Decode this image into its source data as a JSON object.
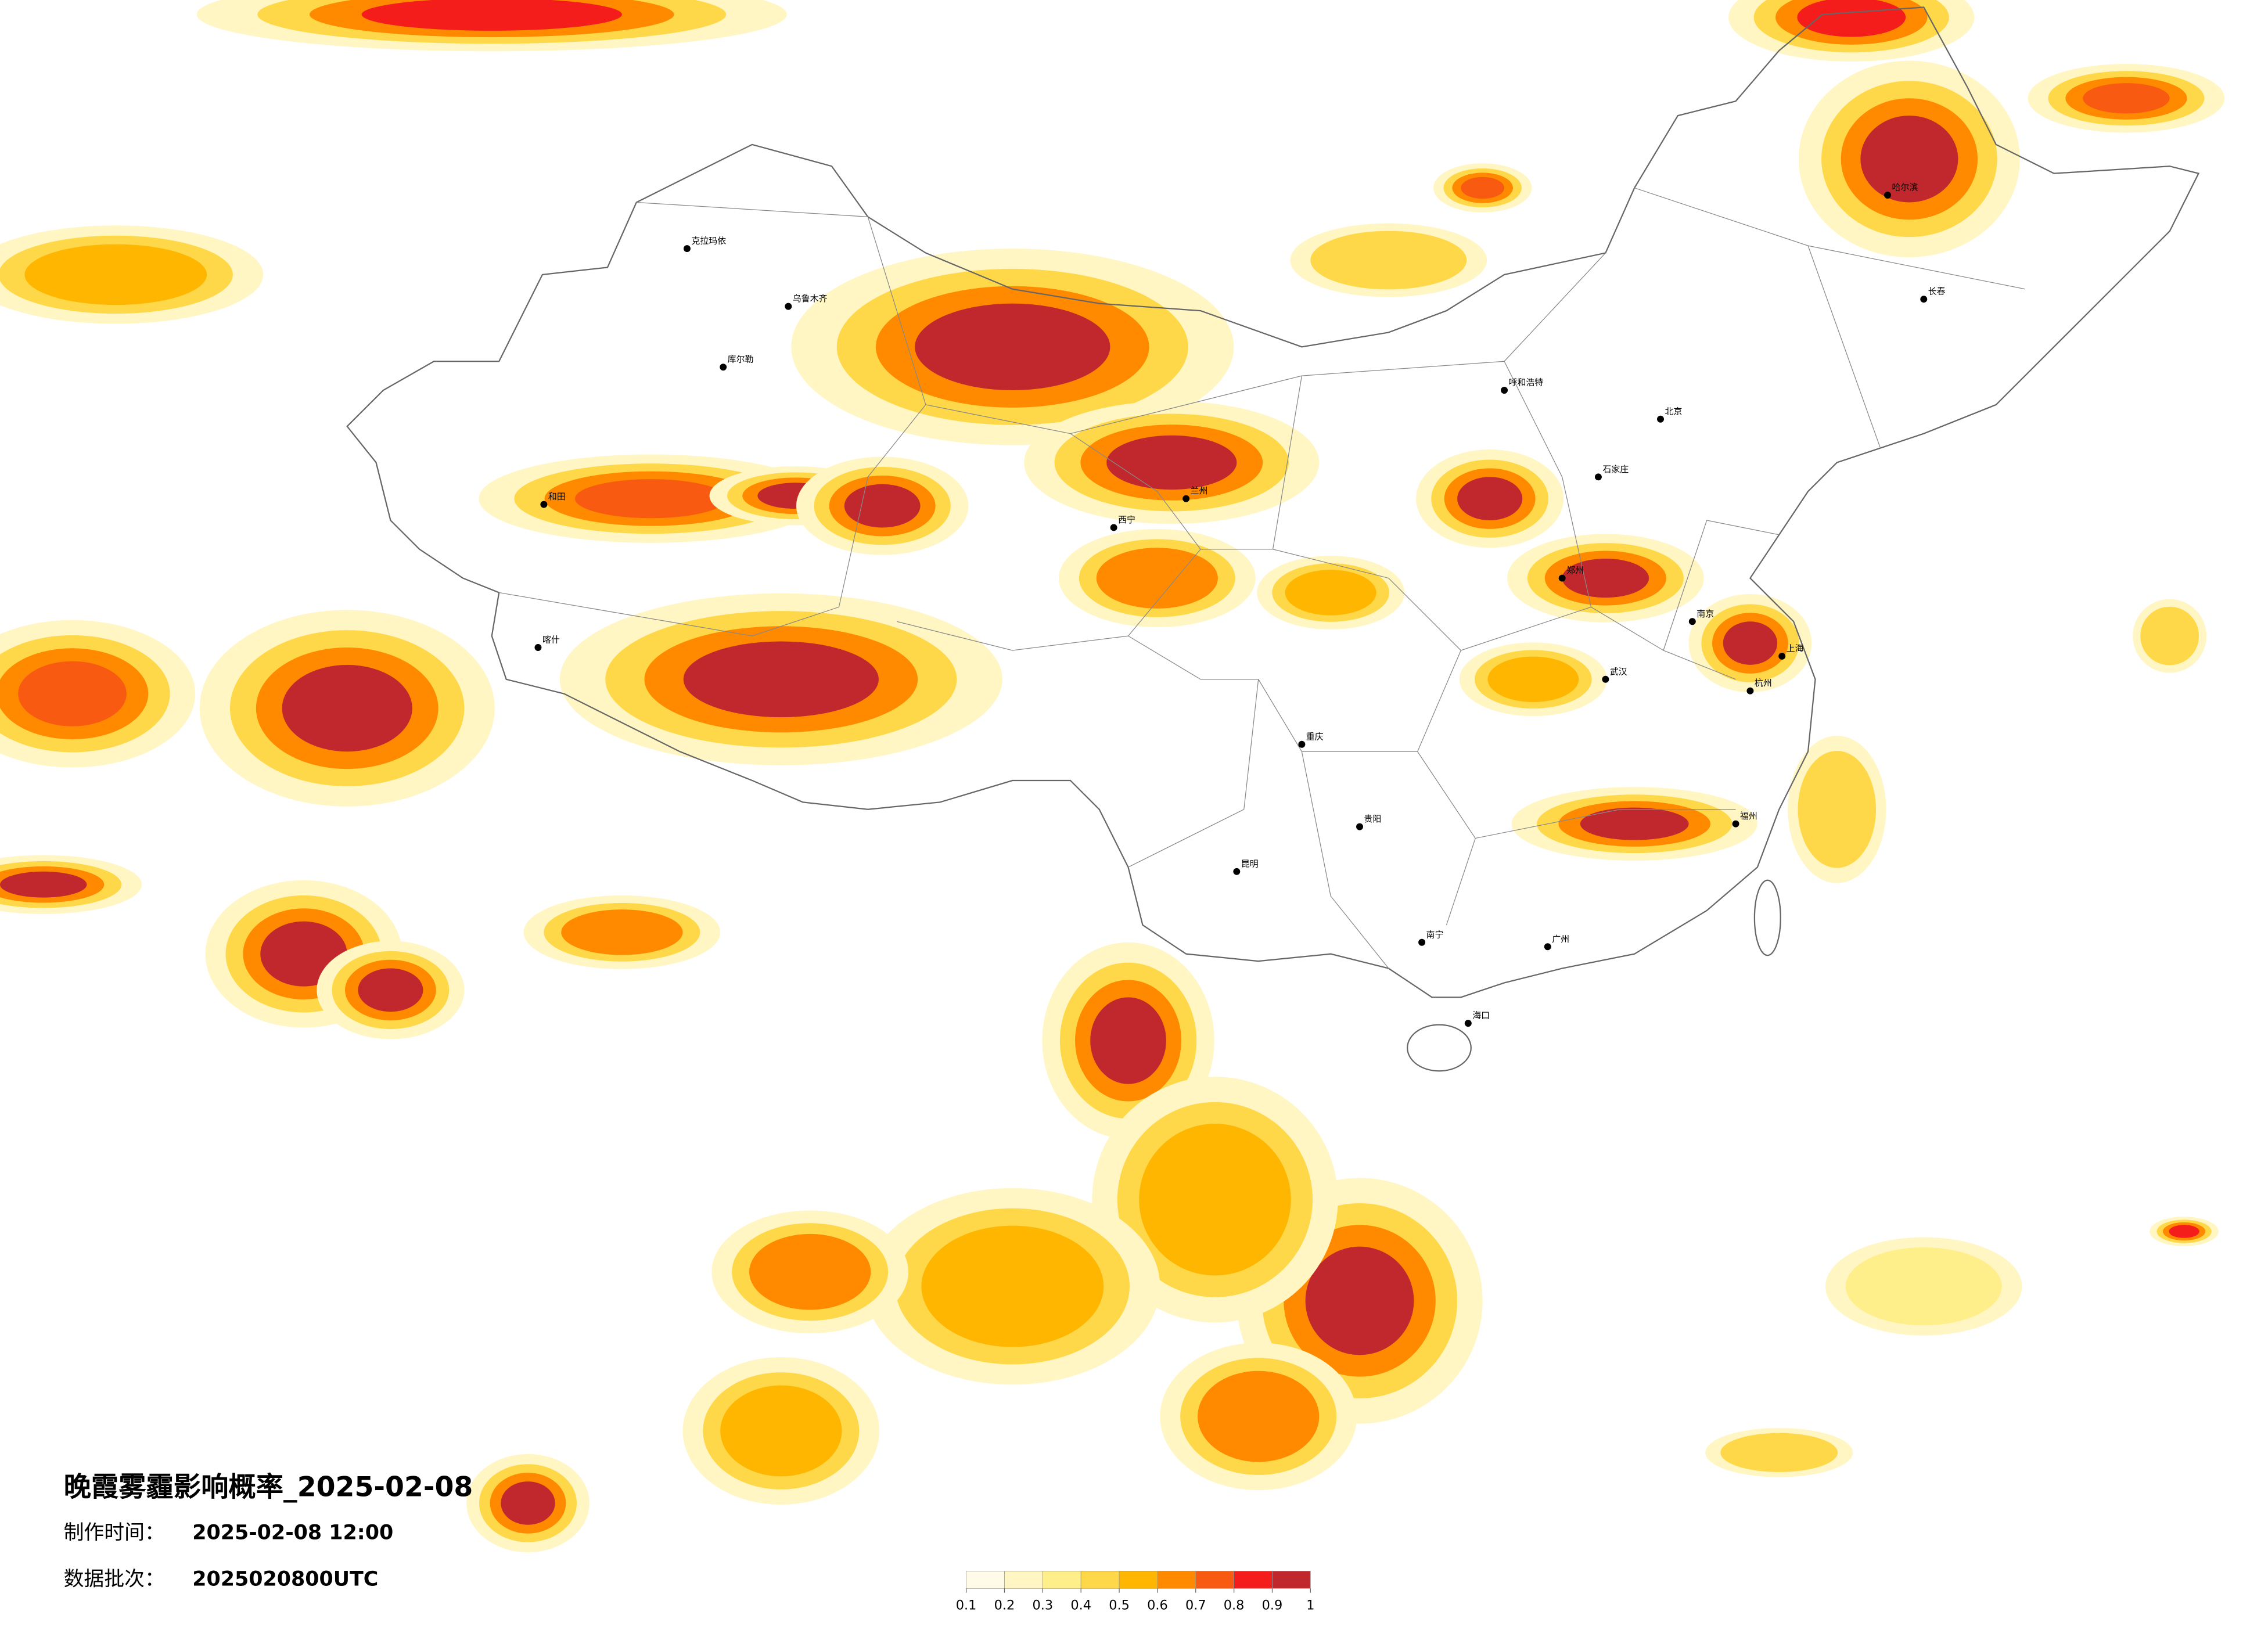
{
  "map": {
    "title": "晚霞雾霾影响概率_2025-02-08",
    "made_time_label": "制作时间：",
    "made_time": "2025-02-08 12:00",
    "batch_label": "数据批次：",
    "batch": "2025020800UTC",
    "legend": {
      "colors": [
        "#fffbe8",
        "#fff6c4",
        "#ffef8a",
        "#ffd84a",
        "#ffb600",
        "#ff8a00",
        "#f95a12",
        "#f51c1c",
        "#c0282d"
      ],
      "ticks": [
        0.1,
        0.2,
        0.3,
        0.4,
        0.5,
        0.6,
        0.7,
        0.8,
        0.9,
        1
      ]
    },
    "cities": [
      "克拉玛依",
      "乌鲁木齐",
      "库尔勒",
      "和田",
      "喀什",
      "哈尔滨",
      "长春",
      "北京",
      "石家庄",
      "郑州",
      "武汉",
      "南京",
      "上海",
      "杭州",
      "福州",
      "广州",
      "南宁",
      "昆明",
      "贵阳",
      "重庆",
      "兰州",
      "西宁",
      "海口",
      "呼和浩特"
    ]
  }
}
